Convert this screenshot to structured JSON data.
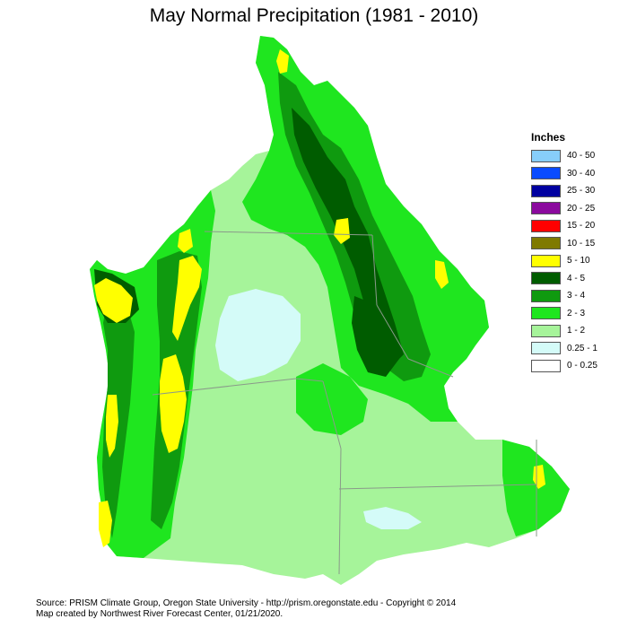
{
  "title": "May Normal Precipitation (1981 - 2010)",
  "legend": {
    "title": "Inches",
    "items": [
      {
        "label": "40 - 50",
        "color": "#87cefa"
      },
      {
        "label": "30 - 40",
        "color": "#0a4bff"
      },
      {
        "label": "25 - 30",
        "color": "#0000a0"
      },
      {
        "label": "20 - 25",
        "color": "#8b0a9e"
      },
      {
        "label": "15 - 20",
        "color": "#ff0000"
      },
      {
        "label": "10 - 15",
        "color": "#7f7a00"
      },
      {
        "label": "5 - 10",
        "color": "#ffff00"
      },
      {
        "label": "4 - 5",
        "color": "#005c00"
      },
      {
        "label": "3 - 4",
        "color": "#0f9a0f"
      },
      {
        "label": "2 - 3",
        "color": "#1fe61f"
      },
      {
        "label": "1 - 2",
        "color": "#a6f49a"
      },
      {
        "label": "0.25 - 1",
        "color": "#d4fbf8"
      },
      {
        "label": "0 - 0.25",
        "color": "#ffffff"
      }
    ]
  },
  "footer": {
    "line1": "Source: PRISM Climate Group, Oregon State University - http://prism.oregonstate.edu - Copyright © 2014",
    "line2": "Map created by Northwest River Forecast Center, 01/21/2020."
  }
}
